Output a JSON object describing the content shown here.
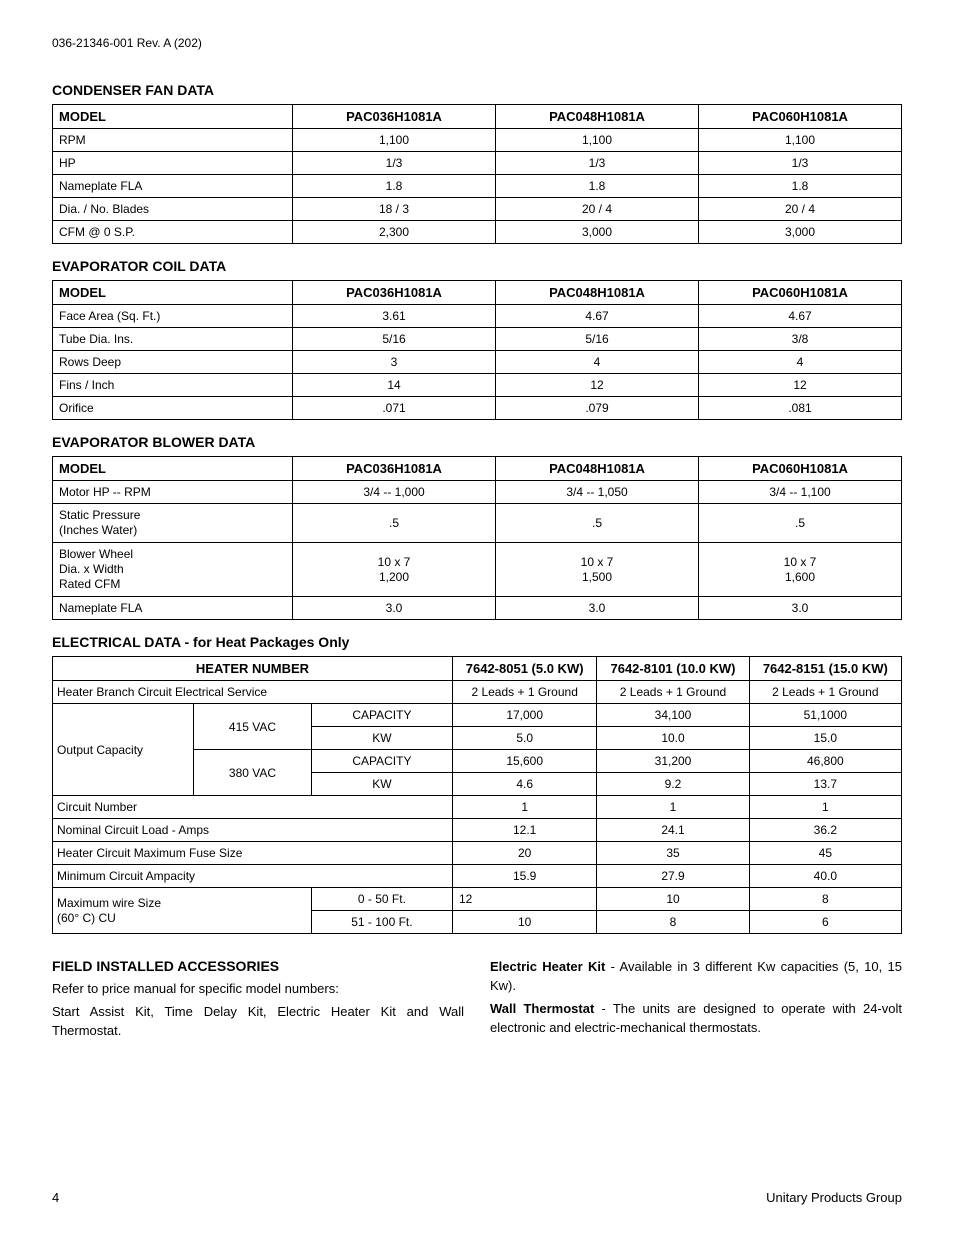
{
  "doc_header": "036-21346-001 Rev. A (202)",
  "page_number": "4",
  "footer_right": "Unitary Products Group",
  "condenser": {
    "title": "CONDENSER FAN DATA",
    "headers": [
      "MODEL",
      "PAC036H1081A",
      "PAC048H1081A",
      "PAC060H1081A"
    ],
    "rows": [
      {
        "label": "RPM",
        "v1": "1,100",
        "v2": "1,100",
        "v3": "1,100"
      },
      {
        "label": "HP",
        "v1": "1/3",
        "v2": "1/3",
        "v3": "1/3"
      },
      {
        "label": "Nameplate FLA",
        "v1": "1.8",
        "v2": "1.8",
        "v3": "1.8"
      },
      {
        "label": "Dia. / No. Blades",
        "v1": "18 / 3",
        "v2": "20 / 4",
        "v3": "20 / 4"
      },
      {
        "label": "CFM @ 0  S.P.",
        "v1": "2,300",
        "v2": "3,000",
        "v3": "3,000"
      }
    ]
  },
  "evapcoil": {
    "title": "EVAPORATOR COIL DATA",
    "headers": [
      "MODEL",
      "PAC036H1081A",
      "PAC048H1081A",
      "PAC060H1081A"
    ],
    "rows": [
      {
        "label": "Face Area (Sq. Ft.)",
        "v1": "3.61",
        "v2": "4.67",
        "v3": "4.67"
      },
      {
        "label": "Tube Dia. Ins.",
        "v1": "5/16",
        "v2": "5/16",
        "v3": "3/8"
      },
      {
        "label": "Rows Deep",
        "v1": "3",
        "v2": "4",
        "v3": "4"
      },
      {
        "label": "Fins / Inch",
        "v1": "14",
        "v2": "12",
        "v3": "12"
      },
      {
        "label": "Orifice",
        "v1": ".071",
        "v2": ".079",
        "v3": ".081"
      }
    ]
  },
  "evapblower": {
    "title": "EVAPORATOR BLOWER DATA",
    "headers": [
      "MODEL",
      "PAC036H1081A",
      "PAC048H1081A",
      "PAC060H1081A"
    ],
    "rows": [
      {
        "label": "Motor HP -- RPM",
        "v1": "3/4 -- 1,000",
        "v2": "3/4 -- 1,050",
        "v3": "3/4 -- 1,100"
      },
      {
        "label": "Static Pressure\n(Inches Water)",
        "v1": ".5",
        "v2": ".5",
        "v3": ".5"
      },
      {
        "label": "Blower Wheel\nDia. x Width\nRated CFM",
        "v1": "10 x 7\n1,200",
        "v2": "10 x 7\n1,500",
        "v3": "10 x 7\n1,600"
      },
      {
        "label": "Nameplate FLA",
        "v1": "3.0",
        "v2": "3.0",
        "v3": "3.0"
      }
    ]
  },
  "electrical": {
    "title": "ELECTRICAL DATA - for Heat Packages Only",
    "header_main": "HEATER NUMBER",
    "header_cols": [
      "7642-8051 (5.0 KW)",
      "7642-8101 (10.0 KW)",
      "7642-8151 (15.0 KW)"
    ],
    "heater_branch": {
      "label": "Heater Branch Circuit Electrical Service",
      "v1": "2 Leads + 1 Ground",
      "v2": "2 Leads + 1 Ground",
      "v3": "2 Leads + 1 Ground"
    },
    "output_capacity_label": "Output Capacity",
    "volt415": "415 VAC",
    "volt380": "380 VAC",
    "cap_label": "CAPACITY",
    "kw_label": "KW",
    "cap415": {
      "v1": "17,000",
      "v2": "34,100",
      "v3": "51,1000"
    },
    "kw415": {
      "v1": "5.0",
      "v2": "10.0",
      "v3": "15.0"
    },
    "cap380": {
      "v1": "15,600",
      "v2": "31,200",
      "v3": "46,800"
    },
    "kw380": {
      "v1": "4.6",
      "v2": "9.2",
      "v3": "13.7"
    },
    "circuit_number": {
      "label": "Circuit Number",
      "v1": "1",
      "v2": "1",
      "v3": "1"
    },
    "nominal_load": {
      "label": "Nominal Circuit Load - Amps",
      "v1": "12.1",
      "v2": "24.1",
      "v3": "36.2"
    },
    "max_fuse": {
      "label": "Heater Circuit Maximum Fuse Size",
      "v1": "20",
      "v2": "35",
      "v3": "45"
    },
    "min_ampacity": {
      "label": "Minimum Circuit Ampacity",
      "v1": "15.9",
      "v2": "27.9",
      "v3": "40.0"
    },
    "maxwire_label": "Maximum wire Size\n(60° C) CU",
    "maxwire_0_50": {
      "range": "0 - 50 Ft.",
      "v1": "12",
      "v2": "10",
      "v3": "8"
    },
    "maxwire_51_100": {
      "range": "51 - 100 Ft.",
      "v1": "10",
      "v2": "8",
      "v3": "6"
    }
  },
  "accessories": {
    "title": "FIELD INSTALLED ACCESSORIES",
    "left_p1": "Refer to price manual for specific model numbers:",
    "left_p2": "Start Assist Kit, Time Delay Kit, Electric Heater Kit and Wall Thermostat.",
    "right_p1_bold": "Electric Heater Kit",
    "right_p1_rest": " - Available in 3 different Kw capacities (5, 10, 15 Kw).",
    "right_p2_bold": "Wall Thermostat",
    "right_p2_rest": " - The units are designed to operate with 24-volt electronic and electric-mechanical thermostats."
  }
}
